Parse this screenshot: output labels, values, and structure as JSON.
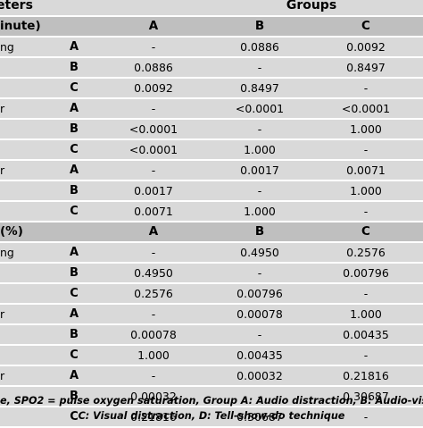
{
  "header": {
    "parameters": "eters",
    "groups": "Groups"
  },
  "sections": [
    {
      "title": "inute)",
      "cols": [
        "A",
        "B",
        "C"
      ],
      "blocks": [
        {
          "label": "ng",
          "rows": [
            {
              "g": "A",
              "a": "-",
              "b": "0.0886",
              "c": "0.0092"
            },
            {
              "g": "B",
              "a": "0.0886",
              "b": "-",
              "c": "0.8497"
            },
            {
              "g": "C",
              "a": "0.0092",
              "b": "0.8497",
              "c": "-"
            }
          ]
        },
        {
          "label": "r",
          "rows": [
            {
              "g": "A",
              "a": "-",
              "b": "<0.0001",
              "c": "<0.0001"
            },
            {
              "g": "B",
              "a": "<0.0001",
              "b": "-",
              "c": "1.000"
            },
            {
              "g": "C",
              "a": "<0.0001",
              "b": "1.000",
              "c": "-"
            }
          ]
        },
        {
          "label": "r",
          "rows": [
            {
              "g": "A",
              "a": "-",
              "b": "0.0017",
              "c": "0.0071"
            },
            {
              "g": "B",
              "a": "0.0017",
              "b": "-",
              "c": "1.000"
            },
            {
              "g": "C",
              "a": "0.0071",
              "b": "1.000",
              "c": "-"
            }
          ]
        }
      ]
    },
    {
      "title": "(%)",
      "cols": [
        "A",
        "B",
        "C"
      ],
      "blocks": [
        {
          "label": "ng",
          "rows": [
            {
              "g": "A",
              "a": "-",
              "b": "0.4950",
              "c": "0.2576"
            },
            {
              "g": "B",
              "a": "0.4950",
              "b": "-",
              "c": "0.00796"
            },
            {
              "g": "C",
              "a": "0.2576",
              "b": "0.00796",
              "c": "-"
            }
          ]
        },
        {
          "label": "r",
          "rows": [
            {
              "g": "A",
              "a": "-",
              "b": "0.00078",
              "c": "1.000"
            },
            {
              "g": "B",
              "a": "0.00078",
              "b": "-",
              "c": "0.00435"
            },
            {
              "g": "C",
              "a": "1.000",
              "b": "0.00435",
              "c": "-"
            }
          ]
        },
        {
          "label": "r",
          "rows": [
            {
              "g": "A",
              "a": "-",
              "b": "0.00032",
              "c": "0.21816"
            },
            {
              "g": "B",
              "a": "0.00032",
              "b": "-",
              "c": "0.30687"
            },
            {
              "g": "C",
              "a": "0.21816",
              "b": "0.30687",
              "c": "-"
            }
          ]
        }
      ]
    }
  ],
  "footer": {
    "line1": "e, SPO2 = pulse oxygen saturation, Group A: Audio distraction, B: Audio-visua",
    "line2": "C: Visual distraction, D: Tell-show-do technique"
  }
}
